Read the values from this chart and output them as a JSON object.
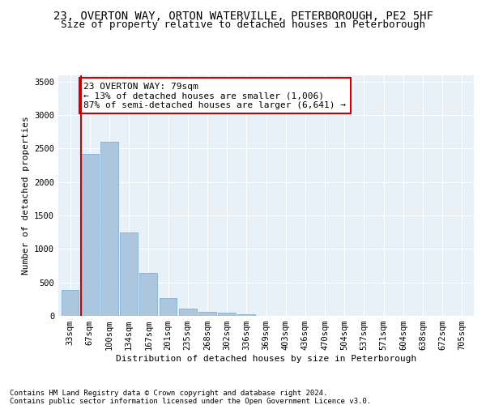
{
  "title1": "23, OVERTON WAY, ORTON WATERVILLE, PETERBOROUGH, PE2 5HF",
  "title2": "Size of property relative to detached houses in Peterborough",
  "xlabel": "Distribution of detached houses by size in Peterborough",
  "ylabel": "Number of detached properties",
  "footnote1": "Contains HM Land Registry data © Crown copyright and database right 2024.",
  "footnote2": "Contains public sector information licensed under the Open Government Licence v3.0.",
  "categories": [
    "33sqm",
    "67sqm",
    "100sqm",
    "134sqm",
    "167sqm",
    "201sqm",
    "235sqm",
    "268sqm",
    "302sqm",
    "336sqm",
    "369sqm",
    "403sqm",
    "436sqm",
    "470sqm",
    "504sqm",
    "537sqm",
    "571sqm",
    "604sqm",
    "638sqm",
    "672sqm",
    "705sqm"
  ],
  "values": [
    390,
    2420,
    2600,
    1250,
    640,
    265,
    108,
    55,
    48,
    30,
    0,
    0,
    0,
    0,
    0,
    0,
    0,
    0,
    0,
    0,
    0
  ],
  "bar_color": "#adc6e0",
  "bar_edge_color": "#7fafd4",
  "vline_color": "#cc0000",
  "vline_pos": 0.55,
  "annotation_text": "23 OVERTON WAY: 79sqm\n← 13% of detached houses are smaller (1,006)\n87% of semi-detached houses are larger (6,641) →",
  "annotation_box_color": "#ffffff",
  "annotation_box_edge": "#cc0000",
  "ylim": [
    0,
    3600
  ],
  "yticks": [
    0,
    500,
    1000,
    1500,
    2000,
    2500,
    3000,
    3500
  ],
  "plot_bg_color": "#e8f0f8",
  "title1_fontsize": 10,
  "title2_fontsize": 9,
  "axis_label_fontsize": 8,
  "tick_fontsize": 7.5,
  "annotation_fontsize": 8
}
